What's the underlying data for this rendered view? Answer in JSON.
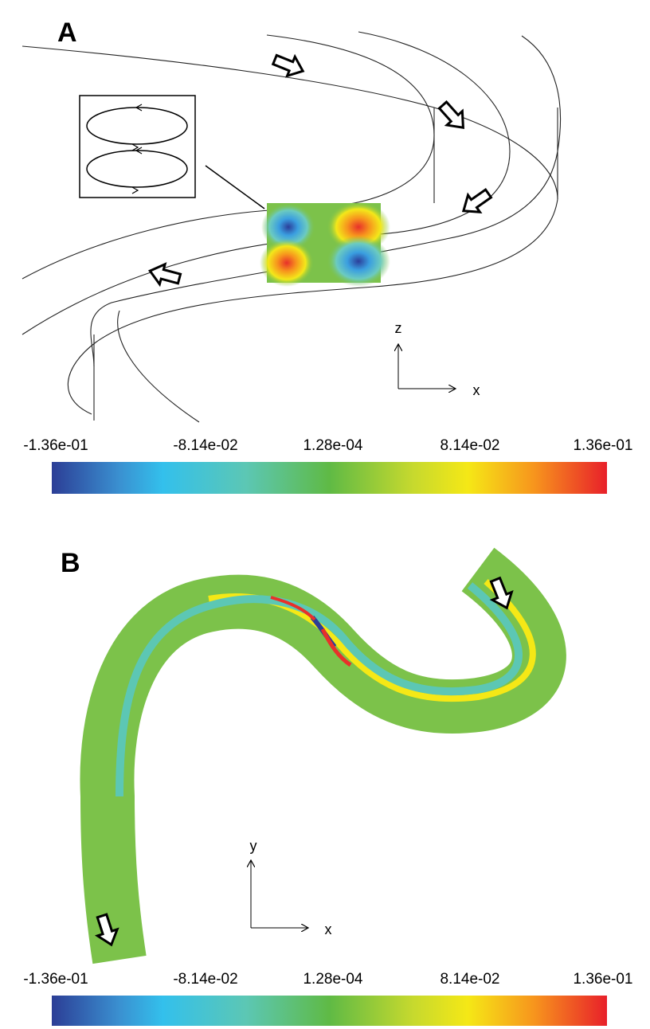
{
  "panels": [
    {
      "label": "A",
      "colorbar": {
        "ticks": [
          "-1.36e-01",
          "-8.14e-02",
          "1.28e-04",
          "8.14e-02",
          "1.36e-01"
        ]
      },
      "axes": {
        "vertical": "z",
        "horizontal": "x"
      }
    },
    {
      "label": "B",
      "colorbar": {
        "ticks": [
          "-1.36e-01",
          "-8.14e-02",
          "1.28e-04",
          "8.14e-02",
          "1.36e-01"
        ]
      },
      "axes": {
        "vertical": "y",
        "horizontal": "x"
      }
    }
  ]
}
